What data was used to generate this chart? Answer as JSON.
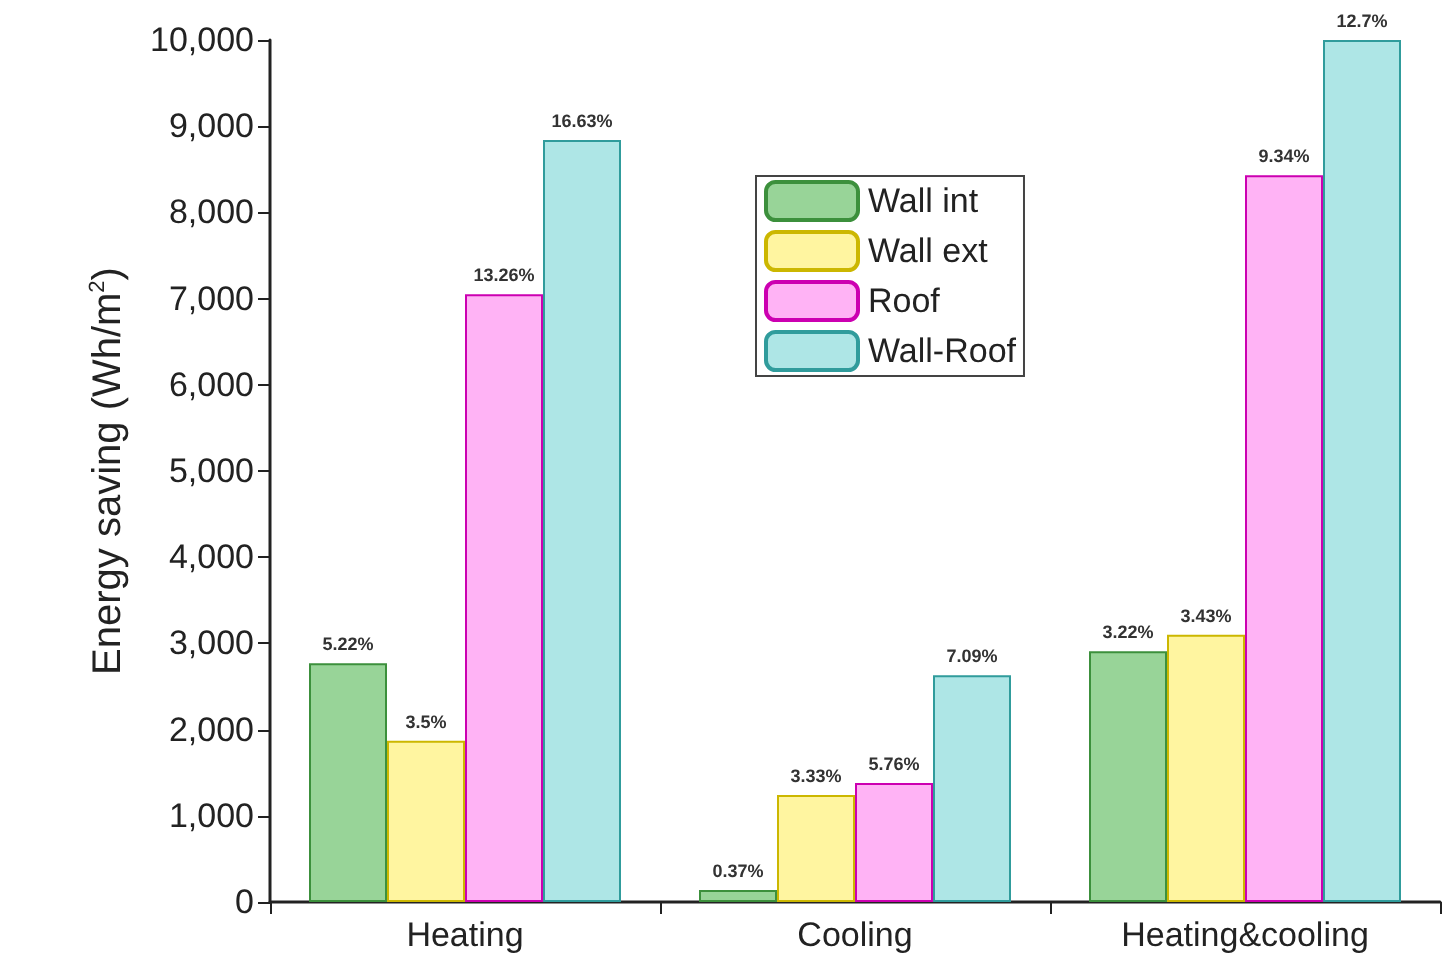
{
  "chart_data": {
    "type": "bar",
    "ylabel": "Energy saving (Wh/m$^{2}$)",
    "categories": [
      "Heating",
      "Cooling",
      "Heating&cooling"
    ],
    "series": [
      {
        "name": "Wall int",
        "color": "#98d498",
        "values": [
          2770,
          140,
          2910
        ]
      },
      {
        "name": "Wall ext",
        "color": "#fff5a0",
        "values": [
          1870,
          1240,
          3100
        ]
      },
      {
        "name": "Roof",
        "color": "#ffb3f5",
        "values": [
          7050,
          1380,
          8430
        ]
      },
      {
        "name": "Wall-Roof",
        "color": "#aee6e6",
        "values": [
          8840,
          2630,
          10000
        ]
      }
    ],
    "annotations": [
      "5.22%",
      "3.5%",
      "13.26%",
      "16.63%",
      "0.37%",
      "3.33%",
      "5.76%",
      "7.09%",
      "3.22%",
      "3.43%",
      "9.34%",
      "12.7%"
    ],
    "ylim": [
      0,
      10000
    ],
    "yticks": [
      {
        "value": 0,
        "label": "0"
      },
      {
        "value": 1000,
        "label": "1,000"
      },
      {
        "value": 2000,
        "label": "2,000"
      },
      {
        "value": 3000,
        "label": "3,000"
      },
      {
        "value": 4000,
        "label": "4,000"
      },
      {
        "value": 5000,
        "label": "5,000"
      },
      {
        "value": 6000,
        "label": "6,000"
      },
      {
        "value": 7000,
        "label": "7,000"
      },
      {
        "value": 8000,
        "label": "8,000"
      },
      {
        "value": 9000,
        "label": "9,000"
      },
      {
        "value": 10000,
        "label": "10,000"
      }
    ],
    "grid": false,
    "legend": "top"
  }
}
